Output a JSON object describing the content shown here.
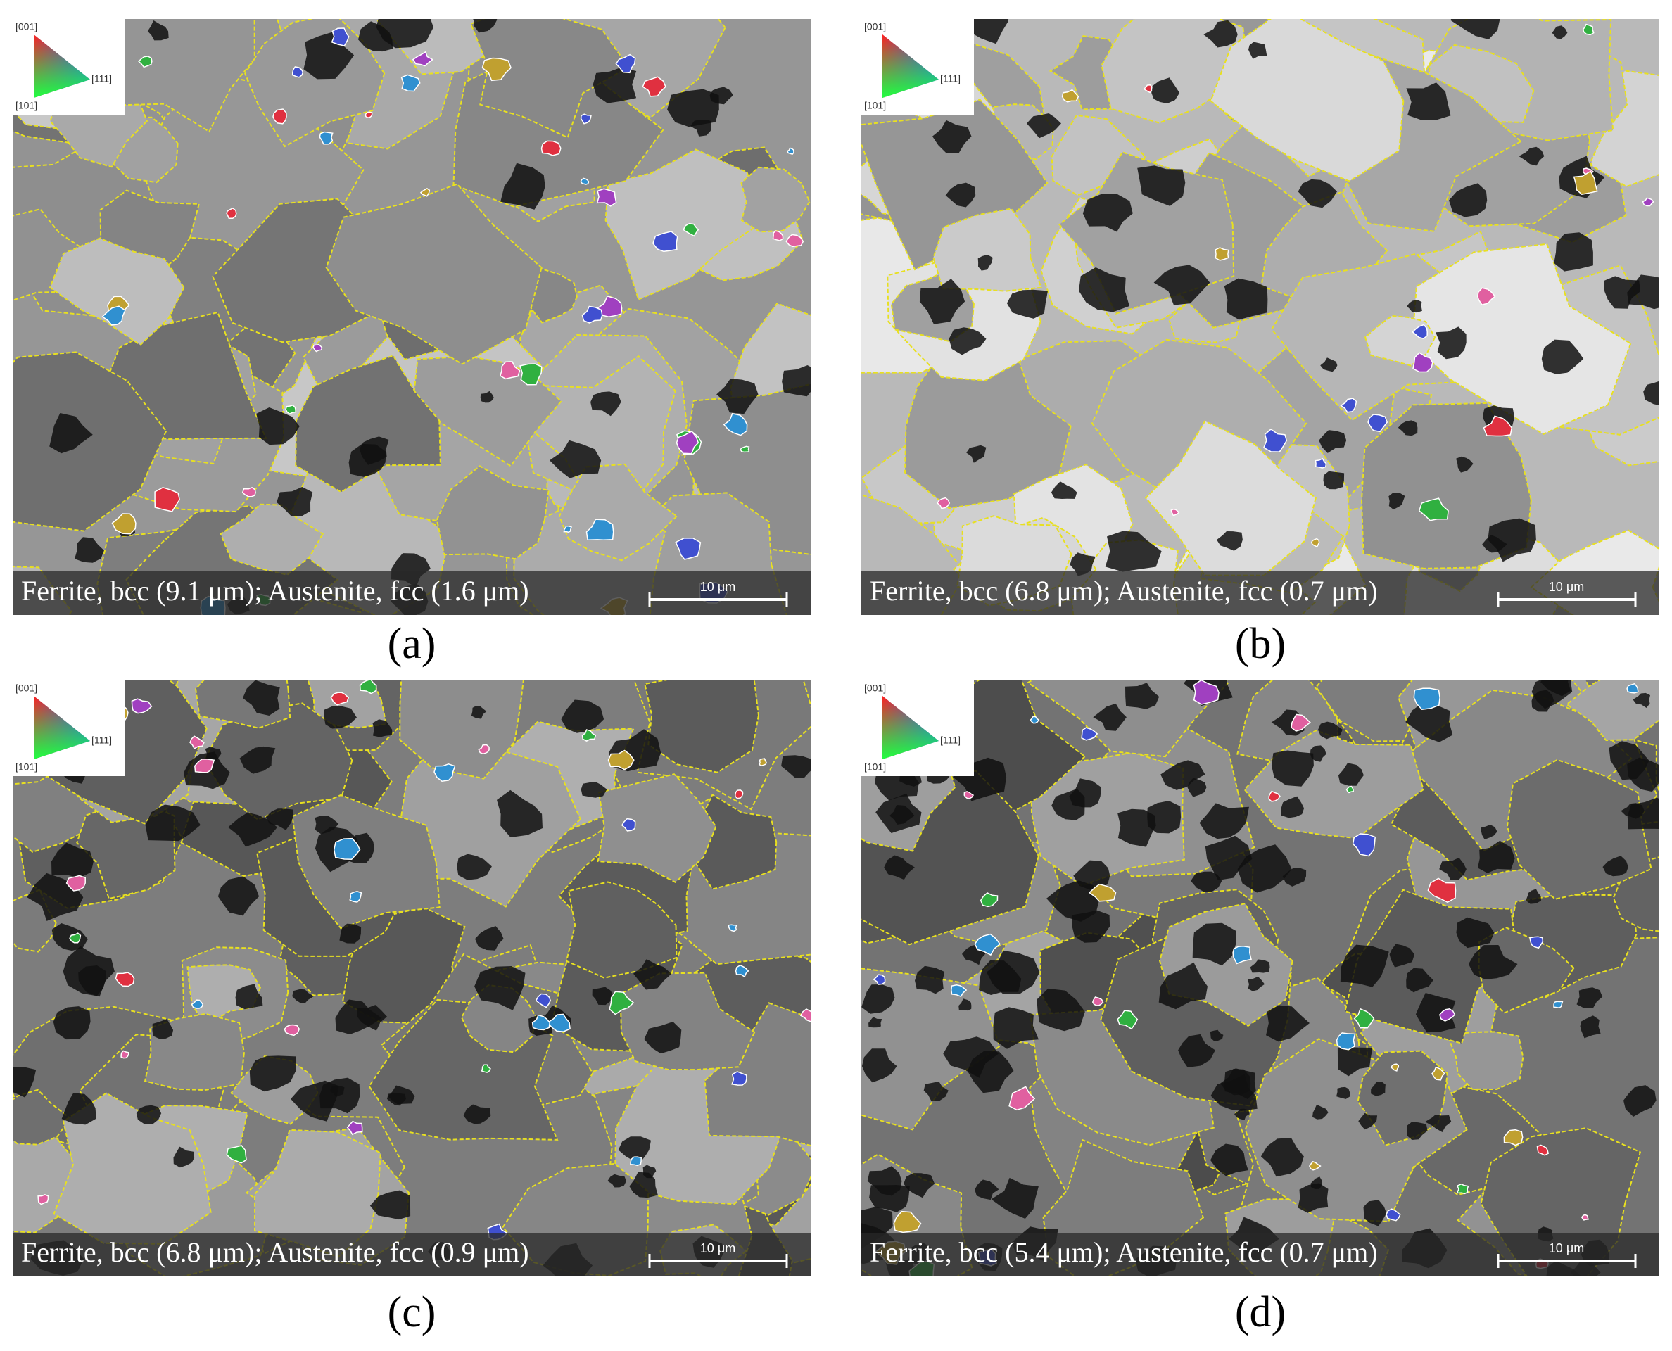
{
  "panels": [
    {
      "label": "(a)",
      "caption": "Ferrite, bcc (9.1 μm); Austenite, fcc (1.6 μm)",
      "scale_bar": "10 μm",
      "legend": {
        "top": "[001]",
        "right": "[111]",
        "bottom": "[101]"
      }
    },
    {
      "label": "(b)",
      "caption": "Ferrite, bcc (6.8 μm); Austenite, fcc (0.7 μm)",
      "scale_bar": "10 μm",
      "legend": {
        "top": "[001]",
        "right": "[111]",
        "bottom": "[101]"
      }
    },
    {
      "label": "(c)",
      "caption": "Ferrite, bcc (6.8 μm); Austenite, fcc (0.9 μm)",
      "scale_bar": "10 μm",
      "legend": {
        "top": "[001]",
        "right": "[111]",
        "bottom": "[101]"
      }
    },
    {
      "label": "(d)",
      "caption": "Ferrite, bcc (5.4 μm); Austenite, fcc (0.7 μm)",
      "scale_bar": "10 μm",
      "legend": {
        "top": "[001]",
        "right": "[111]",
        "bottom": "[101]"
      }
    }
  ]
}
